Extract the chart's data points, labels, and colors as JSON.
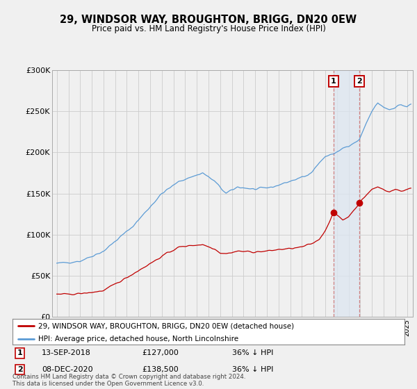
{
  "title": "29, WINDSOR WAY, BROUGHTON, BRIGG, DN20 0EW",
  "subtitle": "Price paid vs. HM Land Registry's House Price Index (HPI)",
  "sale1_date": 2018.7,
  "sale1_price": 127000,
  "sale1_label": "1",
  "sale1_text": "13-SEP-2018",
  "sale1_amount": "£127,000",
  "sale1_pct": "36% ↓ HPI",
  "sale2_date": 2020.93,
  "sale2_price": 138500,
  "sale2_label": "2",
  "sale2_text": "08-DEC-2020",
  "sale2_amount": "£138,500",
  "sale2_pct": "36% ↓ HPI",
  "hpi_color": "#5b9bd5",
  "price_color": "#c00000",
  "vline_color": "#d08080",
  "highlight_color": "#dce6f1",
  "background_color": "#f0f0f0",
  "chart_bg": "#f0f0f0",
  "legend_box_color": "#ffffff",
  "grid_color": "#cccccc",
  "ylim": [
    0,
    300000
  ],
  "xlim": [
    1994.6,
    2025.5
  ],
  "copyright": "Contains HM Land Registry data © Crown copyright and database right 2024.\nThis data is licensed under the Open Government Licence v3.0."
}
